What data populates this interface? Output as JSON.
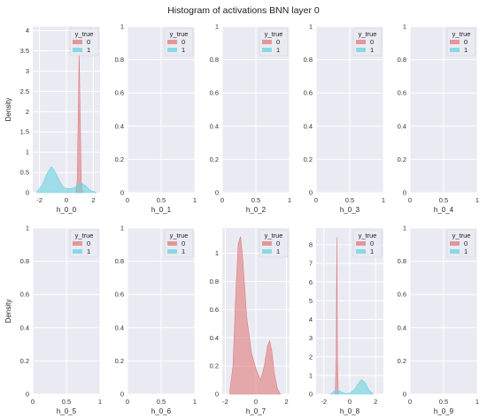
{
  "figure": {
    "title": "Histogram of activations BNN layer 0",
    "colors": {
      "panel_bg": "#eaeaf2",
      "grid": "#ffffff",
      "class_0": "#e07b7b",
      "class_1": "#6ad2e0"
    }
  },
  "chart_data": [
    {
      "type": "area",
      "xlabel": "h_0_0",
      "ylabel": "Density",
      "xticks": [
        -2,
        0,
        2
      ],
      "yticks": [
        0.0,
        0.5,
        1.0,
        1.5,
        2.0,
        2.5,
        3.0,
        3.5,
        4.0
      ],
      "xlim": [
        -2.5,
        2.5
      ],
      "ylim": [
        0,
        4.1
      ],
      "legend": {
        "title": "y_true",
        "entries": [
          "0",
          "1"
        ],
        "placement": "top-right"
      },
      "grid": true,
      "series": [
        {
          "name": "0",
          "x": [
            0.7,
            0.8,
            0.88,
            0.95,
            1.02,
            1.1,
            1.2
          ],
          "y": [
            0,
            0.3,
            2.0,
            3.45,
            2.0,
            0.3,
            0
          ]
        },
        {
          "name": "1",
          "x": [
            -2.2,
            -1.8,
            -1.4,
            -1.1,
            -0.8,
            -0.5,
            -0.2,
            0.2,
            0.6,
            1.0,
            1.4,
            1.8,
            2.2
          ],
          "y": [
            0.02,
            0.18,
            0.5,
            0.64,
            0.5,
            0.28,
            0.12,
            0.1,
            0.12,
            0.25,
            0.18,
            0.05,
            0.01
          ]
        }
      ]
    },
    {
      "type": "area",
      "xlabel": "h_0_1",
      "ylabel": "",
      "xticks": [
        0.0,
        0.5,
        1.0
      ],
      "yticks": [
        0.0,
        0.2,
        0.4,
        0.6,
        0.8,
        1.0
      ],
      "xlim": [
        0,
        1
      ],
      "ylim": [
        0,
        1
      ],
      "legend": {
        "title": "y_true",
        "entries": [
          "0",
          "1"
        ],
        "placement": "top-right"
      },
      "grid": true,
      "series": []
    },
    {
      "type": "area",
      "xlabel": "h_0_2",
      "ylabel": "",
      "xticks": [
        0.0,
        0.5,
        1.0
      ],
      "yticks": [
        0.0,
        0.2,
        0.4,
        0.6,
        0.8,
        1.0
      ],
      "xlim": [
        0,
        1
      ],
      "ylim": [
        0,
        1
      ],
      "legend": {
        "title": "y_true",
        "entries": [
          "0",
          "1"
        ],
        "placement": "top-right"
      },
      "grid": true,
      "series": []
    },
    {
      "type": "area",
      "xlabel": "h_0_3",
      "ylabel": "",
      "xticks": [
        0.0,
        0.5,
        1.0
      ],
      "yticks": [
        0.0,
        0.2,
        0.4,
        0.6,
        0.8,
        1.0
      ],
      "xlim": [
        0,
        1
      ],
      "ylim": [
        0,
        1
      ],
      "legend": {
        "title": "y_true",
        "entries": [
          "0",
          "1"
        ],
        "placement": "top-right"
      },
      "grid": true,
      "series": []
    },
    {
      "type": "area",
      "xlabel": "h_0_4",
      "ylabel": "",
      "xticks": [
        0.0,
        0.5,
        1.0
      ],
      "yticks": [
        0.0,
        0.2,
        0.4,
        0.6,
        0.8,
        1.0
      ],
      "xlim": [
        0,
        1
      ],
      "ylim": [
        0,
        1
      ],
      "legend": {
        "title": "y_true",
        "entries": [
          "0",
          "1"
        ],
        "placement": "top-right"
      },
      "grid": true,
      "series": []
    },
    {
      "type": "area",
      "xlabel": "h_0_5",
      "ylabel": "Density",
      "xticks": [
        0.0,
        0.5,
        1.0
      ],
      "yticks": [
        0.0,
        0.2,
        0.4,
        0.6,
        0.8,
        1.0
      ],
      "xlim": [
        0,
        1
      ],
      "ylim": [
        0,
        1
      ],
      "legend": {
        "title": "y_true",
        "entries": [
          "0",
          "1"
        ],
        "placement": "top-right"
      },
      "grid": true,
      "series": []
    },
    {
      "type": "area",
      "xlabel": "h_0_6",
      "ylabel": "",
      "xticks": [
        0.0,
        0.5,
        1.0
      ],
      "yticks": [
        0.0,
        0.2,
        0.4,
        0.6,
        0.8,
        1.0
      ],
      "xlim": [
        0,
        1
      ],
      "ylim": [
        0,
        1
      ],
      "legend": {
        "title": "y_true",
        "entries": [
          "0",
          "1"
        ],
        "placement": "top-right"
      },
      "grid": true,
      "series": []
    },
    {
      "type": "area",
      "xlabel": "h_0_7",
      "ylabel": "",
      "xticks": [
        -2,
        0,
        2
      ],
      "yticks": [
        0.0,
        0.2,
        0.4,
        0.6,
        0.8,
        1.0
      ],
      "xlim": [
        -2.2,
        2.2
      ],
      "ylim": [
        0,
        1.18
      ],
      "legend": {
        "title": "y_true",
        "entries": [
          "0",
          "1"
        ],
        "placement": "top-right"
      },
      "grid": true,
      "series": [
        {
          "name": "0",
          "x": [
            -1.7,
            -1.5,
            -1.3,
            -1.15,
            -1.0,
            -0.85,
            -0.6,
            -0.3,
            0.0,
            0.3,
            0.55,
            0.75,
            0.9,
            1.05,
            1.2,
            1.4,
            1.6
          ],
          "y": [
            0.02,
            0.2,
            0.75,
            1.07,
            1.12,
            0.95,
            0.55,
            0.3,
            0.18,
            0.1,
            0.2,
            0.34,
            0.38,
            0.3,
            0.15,
            0.04,
            0.0
          ]
        }
      ]
    },
    {
      "type": "area",
      "xlabel": "h_0_8",
      "ylabel": "",
      "xticks": [
        -2,
        0,
        2
      ],
      "yticks": [
        0,
        1,
        2,
        3,
        4,
        5,
        6,
        7,
        8
      ],
      "xlim": [
        -2.6,
        2.6
      ],
      "ylim": [
        0,
        8.9
      ],
      "legend": {
        "title": "y_true",
        "entries": [
          "0",
          "1"
        ],
        "placement": "top-right"
      },
      "grid": true,
      "series": [
        {
          "name": "0",
          "x": [
            -1.12,
            -1.05,
            -1.0,
            -0.95,
            -0.88
          ],
          "y": [
            0,
            2.0,
            8.4,
            2.0,
            0
          ]
        },
        {
          "name": "1",
          "x": [
            -1.5,
            -1.2,
            -0.9,
            -0.6,
            -0.3,
            0.0,
            0.3,
            0.6,
            0.9,
            1.2,
            1.5,
            1.8
          ],
          "y": [
            0.0,
            0.15,
            0.22,
            0.1,
            0.03,
            0.05,
            0.2,
            0.5,
            0.78,
            0.6,
            0.2,
            0.02
          ]
        }
      ]
    },
    {
      "type": "area",
      "xlabel": "h_0_9",
      "ylabel": "",
      "xticks": [
        0.0,
        0.5,
        1.0
      ],
      "yticks": [
        0.0,
        0.2,
        0.4,
        0.6,
        0.8,
        1.0
      ],
      "xlim": [
        0,
        1
      ],
      "ylim": [
        0,
        1
      ],
      "legend": {
        "title": "y_true",
        "entries": [
          "0",
          "1"
        ],
        "placement": "top-right"
      },
      "grid": true,
      "series": []
    }
  ]
}
